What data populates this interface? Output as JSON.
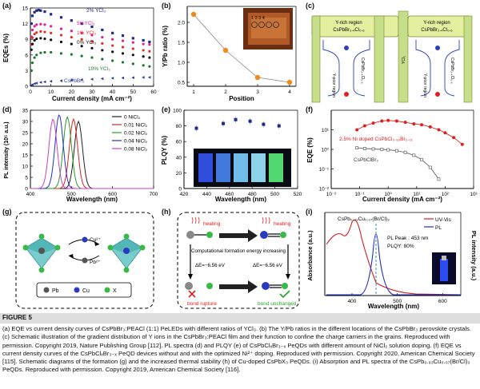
{
  "panel_labels": {
    "a": "(a)",
    "b": "(b)",
    "c": "(c)",
    "d": "(d)",
    "e": "(e)",
    "f": "(f)",
    "g": "(g)",
    "h": "(h)",
    "i": "(i)"
  },
  "chart_data": [
    {
      "id": "a",
      "type": "scatter",
      "xlabel": "Current density (mA cm⁻²)",
      "ylabel": "EQEs (%)",
      "xlim": [
        0,
        60
      ],
      "ylim": [
        0,
        15
      ],
      "xticks": [
        "0",
        "10",
        "20",
        "30",
        "40",
        "50",
        "60"
      ],
      "yticks": [
        "0",
        "3",
        "6",
        "9",
        "12",
        "15"
      ],
      "series": [
        {
          "name": "2% YCl₃",
          "color": "#1f2a8a",
          "x": [
            0.5,
            1,
            2,
            3,
            4,
            5,
            7,
            10,
            15,
            20,
            25,
            30,
            35,
            40,
            45,
            50,
            55,
            58
          ],
          "y": [
            12,
            13.5,
            14.2,
            14.5,
            14.6,
            14.5,
            14.3,
            13.8,
            13.2,
            12.6,
            12,
            11.4,
            10.8,
            10.2,
            9.7,
            9.2,
            8.8,
            8.5
          ]
        },
        {
          "name": "5%YCl₃",
          "color": "#e0208c",
          "x": [
            0.5,
            1,
            2,
            3,
            5,
            7,
            10,
            15,
            20,
            25,
            30,
            35,
            40,
            45,
            50,
            55,
            58
          ],
          "y": [
            9.5,
            10.8,
            11.5,
            11.8,
            11.9,
            11.8,
            11.5,
            11,
            10.6,
            10.2,
            9.8,
            9.4,
            9,
            8.7,
            8.4,
            8.1,
            8
          ]
        },
        {
          "name": "1% YCl₃",
          "color": "#e03020",
          "x": [
            0.5,
            1,
            2,
            3,
            5,
            7,
            10,
            15,
            20,
            25,
            30,
            35,
            40,
            45,
            50,
            55,
            58
          ],
          "y": [
            8,
            9.3,
            10,
            10.3,
            10.5,
            10.4,
            10.2,
            9.8,
            9.4,
            9,
            8.6,
            8.2,
            7.8,
            7.5,
            7.2,
            6.9,
            6.7
          ]
        },
        {
          "name": "0% YCl₃",
          "color": "#111111",
          "x": [
            0.5,
            1,
            2,
            3,
            5,
            7,
            10,
            15,
            20,
            25,
            30,
            35,
            40,
            45,
            50,
            55,
            58
          ],
          "y": [
            7,
            8.1,
            8.8,
            9.1,
            9.2,
            9.1,
            8.9,
            8.5,
            8.1,
            7.7,
            7.3,
            6.9,
            6.6,
            6.3,
            6,
            5.7,
            5.5
          ]
        },
        {
          "name": "10% YCl₃",
          "color": "#1a7a2a",
          "x": [
            0.5,
            1,
            2,
            3,
            5,
            7,
            10,
            15,
            20,
            25,
            30,
            35,
            40,
            45,
            50,
            55,
            58
          ],
          "y": [
            3,
            4.5,
            5.5,
            6,
            6.4,
            6.5,
            6.5,
            6.3,
            6.1,
            5.8,
            5.5,
            5.2,
            4.9,
            4.6,
            4.3,
            4,
            3.8
          ]
        },
        {
          "name": "CsPbBr₃",
          "color": "#2a3a9a",
          "x": [
            0.5,
            1,
            2,
            3,
            5,
            7,
            10,
            15,
            20,
            25,
            30,
            35,
            40,
            45,
            50,
            55,
            58
          ],
          "y": [
            0.2,
            0.3,
            0.5,
            0.6,
            0.75,
            0.85,
            0.95,
            1.05,
            1.15,
            1.25,
            1.35,
            1.45,
            1.55,
            1.6,
            1.65,
            1.7,
            1.72
          ]
        }
      ]
    },
    {
      "id": "b",
      "type": "line",
      "xlabel": "Position",
      "ylabel": "Y/Pb ratio (%)",
      "xlim": [
        0.8,
        4.2
      ],
      "ylim": [
        0.4,
        2.4
      ],
      "xticks": [
        "1",
        "2",
        "3",
        "4"
      ],
      "yticks": [
        "0.5",
        "1.0",
        "1.5",
        "2.0"
      ],
      "x": [
        1,
        2,
        3,
        4
      ],
      "y": [
        2.2,
        1.3,
        0.62,
        0.5
      ],
      "color": "#f08a1c"
    },
    {
      "id": "d",
      "type": "line",
      "xlabel": "Wavelength (nm)",
      "ylabel": "PL intensity (10⁵ a.u.)",
      "xlim": [
        400,
        700
      ],
      "ylim": [
        0,
        35
      ],
      "xticks": [
        "400",
        "500",
        "600",
        "700"
      ],
      "yticks": [
        "0",
        "5",
        "10",
        "15",
        "20",
        "25",
        "30",
        "35"
      ],
      "series": [
        {
          "name": "0 NiCl₂",
          "color": "#222222",
          "peak": 517,
          "height": 30
        },
        {
          "name": "0.01 NiCl₂",
          "color": "#e02020",
          "peak": 505,
          "height": 31
        },
        {
          "name": "0.02 NiCl₂",
          "color": "#2a9a2a",
          "peak": 490,
          "height": 32
        },
        {
          "name": "0.04 NiCl₂",
          "color": "#2030d0",
          "peak": 470,
          "height": 33
        },
        {
          "name": "0.08 NiCl₂",
          "color": "#d040c0",
          "peak": 455,
          "height": 31
        }
      ]
    },
    {
      "id": "e",
      "type": "scatter",
      "xlabel": "Wavelength (nm)",
      "ylabel": "PLQY (%)",
      "xlim": [
        420,
        530
      ],
      "ylim": [
        0,
        100
      ],
      "xticks": [
        "420",
        "440",
        "460",
        "480",
        "500",
        "520"
      ],
      "yticks": [
        "0",
        "20",
        "40",
        "60",
        "80",
        "100"
      ],
      "x": [
        432,
        458,
        470,
        484,
        497,
        512
      ],
      "y": [
        77,
        83,
        88,
        86,
        82,
        80
      ],
      "color": "#1f2a8a"
    },
    {
      "id": "f",
      "type": "scatter",
      "xlabel": "Current density (mA cm⁻²)",
      "ylabel": "EQE (%)",
      "xlim_log": [
        -2,
        3
      ],
      "ylim_log": [
        -2,
        2
      ],
      "xticks": [
        "10⁻²",
        "10⁻¹",
        "10⁰",
        "10¹",
        "10²",
        "10³"
      ],
      "yticks": [
        "10⁻²",
        "10⁻¹",
        "10⁰",
        "10¹"
      ],
      "series": [
        {
          "name": "2.5% Ni doped CsPbCl₀.₉₉Br₂.₀₁",
          "color": "#e02020",
          "x": [
            0.08,
            0.15,
            0.3,
            0.6,
            1,
            2,
            4,
            8,
            15,
            30,
            60,
            100,
            200,
            400
          ],
          "y": [
            10,
            16,
            22,
            28,
            30,
            28,
            24,
            20,
            18,
            14,
            10,
            7,
            4,
            1.8
          ]
        },
        {
          "name": "CsPbClBr₂",
          "color": "#666666",
          "x": [
            0.08,
            0.15,
            0.3,
            0.6,
            1,
            2,
            4,
            8,
            15,
            30,
            60
          ],
          "y": [
            1.2,
            1.1,
            1.05,
            1.0,
            0.95,
            0.85,
            0.7,
            0.5,
            0.3,
            0.12,
            0.03
          ]
        }
      ]
    },
    {
      "id": "i",
      "type": "line",
      "xlabel": "Wavelength (nm)",
      "ylabel": "Absorbance (a.u.)",
      "ylabel2": "PL intensity (a.u.)",
      "xlim": [
        340,
        640
      ],
      "xticks": [
        "400",
        "500",
        "600"
      ],
      "series": [
        {
          "name": "UV-Vis",
          "color": "#d02020"
        },
        {
          "name": "PL",
          "color": "#2030c0"
        }
      ]
    }
  ],
  "a_labels": {
    "s2": "2% YCl₃",
    "s5": "5%YCl₃",
    "s1": "1% YCl₃",
    "s0": "0% YCl₃",
    "s10": "10% YCl₃",
    "scs": "CsPbBr₃"
  },
  "b_inset": {
    "numbers": "1 2 3 4"
  },
  "c": {
    "y_rich_1": "Y-rich region",
    "y_rich_sub_1": "CsPbBr₂.₄Cl₀.₆",
    "y_rich_2": "Y-rich region",
    "y_rich_sub_2": "CsPbBr₂.₄Cl₀.₆",
    "y_poor_1": "Y-poor region",
    "y_poor_2": "Y-poor region",
    "comp_1": "CsPbBr₂.₄Cl₀.₆",
    "comp_2": "CsPbBr₂.₄Cl₀.₆",
    "ycl3": "YCl₃"
  },
  "f_labels": {
    "s1": "2.5% Ni doped CsPbCl₀.₉₉Br₂.₀₁",
    "s2": "CsPbClBr₂"
  },
  "g": {
    "cu": "Cu²⁺",
    "pb": "Pb²⁺",
    "leg_pb": "Pb",
    "leg_cu": "Cu",
    "leg_x": "X"
  },
  "h": {
    "heating1": "heating",
    "heating2": "heating",
    "center": "Computational formation energy increasing",
    "de1": "ΔE=−6.56 eV",
    "de2": "ΔE=−6.56 eV",
    "rupture": "bond rupture",
    "unchanged": "bond unchanged"
  },
  "i_labels": {
    "compound": "CsPb₀.₉₃Cu₀.₀₇(Br/Cl)₃",
    "peak": "PL Peak : 453 nm",
    "plqy": "PLQY: 80%",
    "uv": "UV-Vis",
    "pl": "PL"
  },
  "figure_label": "FIGURE 5",
  "caption": "(a) EQE vs current density curves of CsPbBr₃:PEACl (1:1) PeLEDs with different ratios of YCl₃. (b) The Y/Pb ratios in the different locations of the CsPbBr₃ perovskite crystals. (c) Schematic illustration of the gradient distribution of Y ions in the CsPbBr₃:PEACl film and their function to confine the charge carriers in the grains. Reproduced with permission. Copyright 2019, Nature Publishing Group [112]. PL spectra (d) and PLQY (e) of CsPbClₓBr₃₋ₓ PeQDs with different amount of NiCl₂ solution doping. (f) EQE vs current density curves of the CsPbClₓBr₃₋ₓ PeQD devices without and with the optimized Ni²⁺ doping. Reproduced with permission. Copyright 2020, American Chemical Society [115]. Schematic diagrams of the formation (g) and the increased thermal stability (h) of Cu-doped CsPbX₃ PeQDs. (i) Absorption and PL spectra of the CsPb₀.₉₃Cu₀.₀₇(Br/Cl)₃ PeQDs. Reproduced with permission. Copyright 2019, American Chemical Society [116]."
}
